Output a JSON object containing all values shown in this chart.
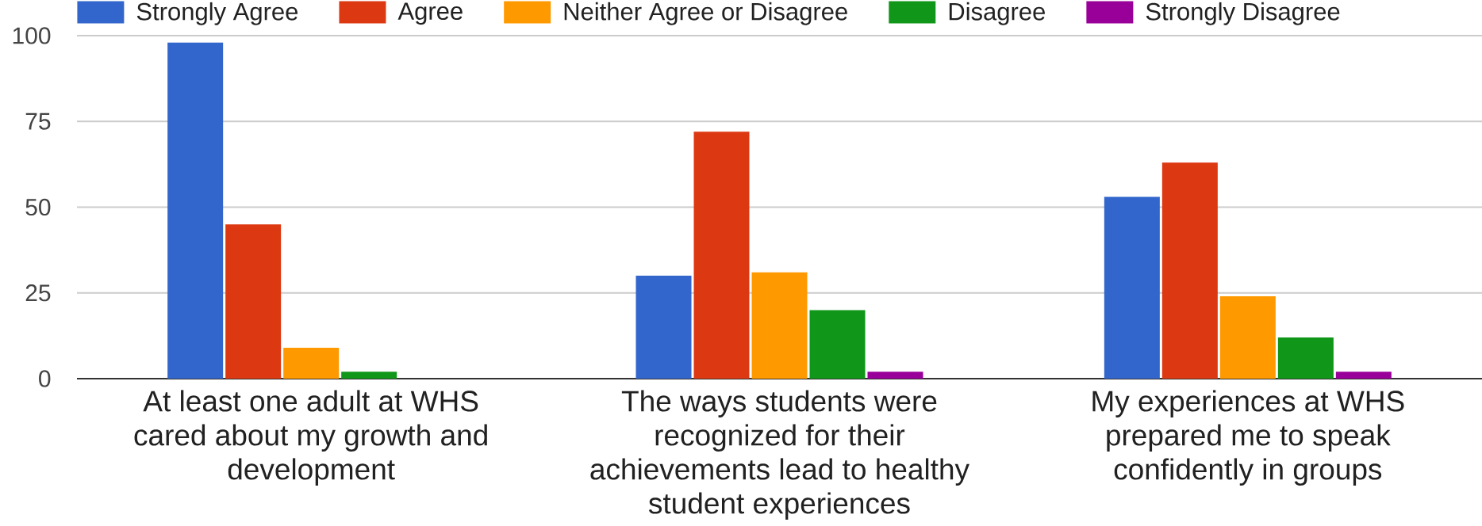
{
  "chart_data": {
    "type": "bar",
    "categories": [
      "At least one adult at WHS cared about my growth and development",
      "The ways students were recognized for their achievements lead to healthy student experiences",
      "My experiences at WHS prepared me to speak confidently in groups"
    ],
    "series": [
      {
        "name": "Strongly Agree",
        "color": "#3366cc",
        "values": [
          98,
          30,
          53
        ]
      },
      {
        "name": "Agree",
        "color": "#dc3912",
        "values": [
          45,
          72,
          63
        ]
      },
      {
        "name": "Neither Agree or Disagree",
        "color": "#ff9900",
        "values": [
          9,
          31,
          24
        ]
      },
      {
        "name": "Disagree",
        "color": "#109618",
        "values": [
          2,
          20,
          12
        ]
      },
      {
        "name": "Strongly Disagree",
        "color": "#990099",
        "values": [
          0,
          2,
          2
        ]
      }
    ],
    "ylim": [
      0,
      100
    ],
    "yticks": [
      0,
      25,
      50,
      75,
      100
    ],
    "grid": "y",
    "legend": "top"
  }
}
